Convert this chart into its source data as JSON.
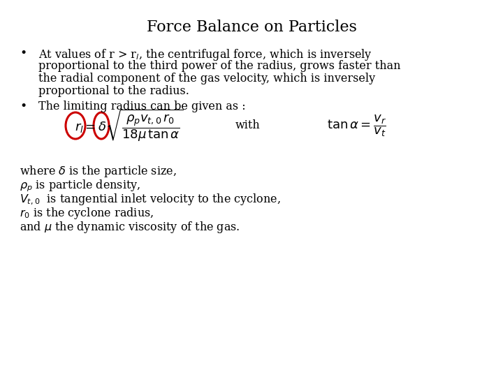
{
  "title": "Force Balance on Particles",
  "title_fontsize": 16,
  "background_color": "#ffffff",
  "text_color": "#000000",
  "circle_color": "#cc0000",
  "body_fontsize": 11.5,
  "eq_fontsize": 13,
  "bullet1_line1": "At values of r > r",
  "bullet1_sub": "l",
  "bullet1_rest": ", the centrifugal force, which is inversely",
  "bullet1_line2": "proportional to the third power of the radius, grows faster than",
  "bullet1_line3": "the radial component of the gas velocity, which is inversely",
  "bullet1_line4": "proportional to the radius.",
  "bullet2": "The limiting radius can be given as :",
  "equation_main": "$r_l = \\delta\\sqrt{\\dfrac{\\rho_p v_{t,0}\\,r_0}{18\\mu\\,\\tan\\alpha}}$",
  "equation_with": "with",
  "equation_tan": "$\\tan\\alpha = \\dfrac{v_r}{v_t}$",
  "desc1": "where $\\delta$ is the particle size,",
  "desc2": "$\\rho_p$ is particle density,",
  "desc3": "$V_{t,0}$  is tangential inlet velocity to the cyclone,",
  "desc4": "$r_0$ is the cyclone radius,",
  "desc5": "and $\\mu$ the dynamic viscosity of the gas."
}
